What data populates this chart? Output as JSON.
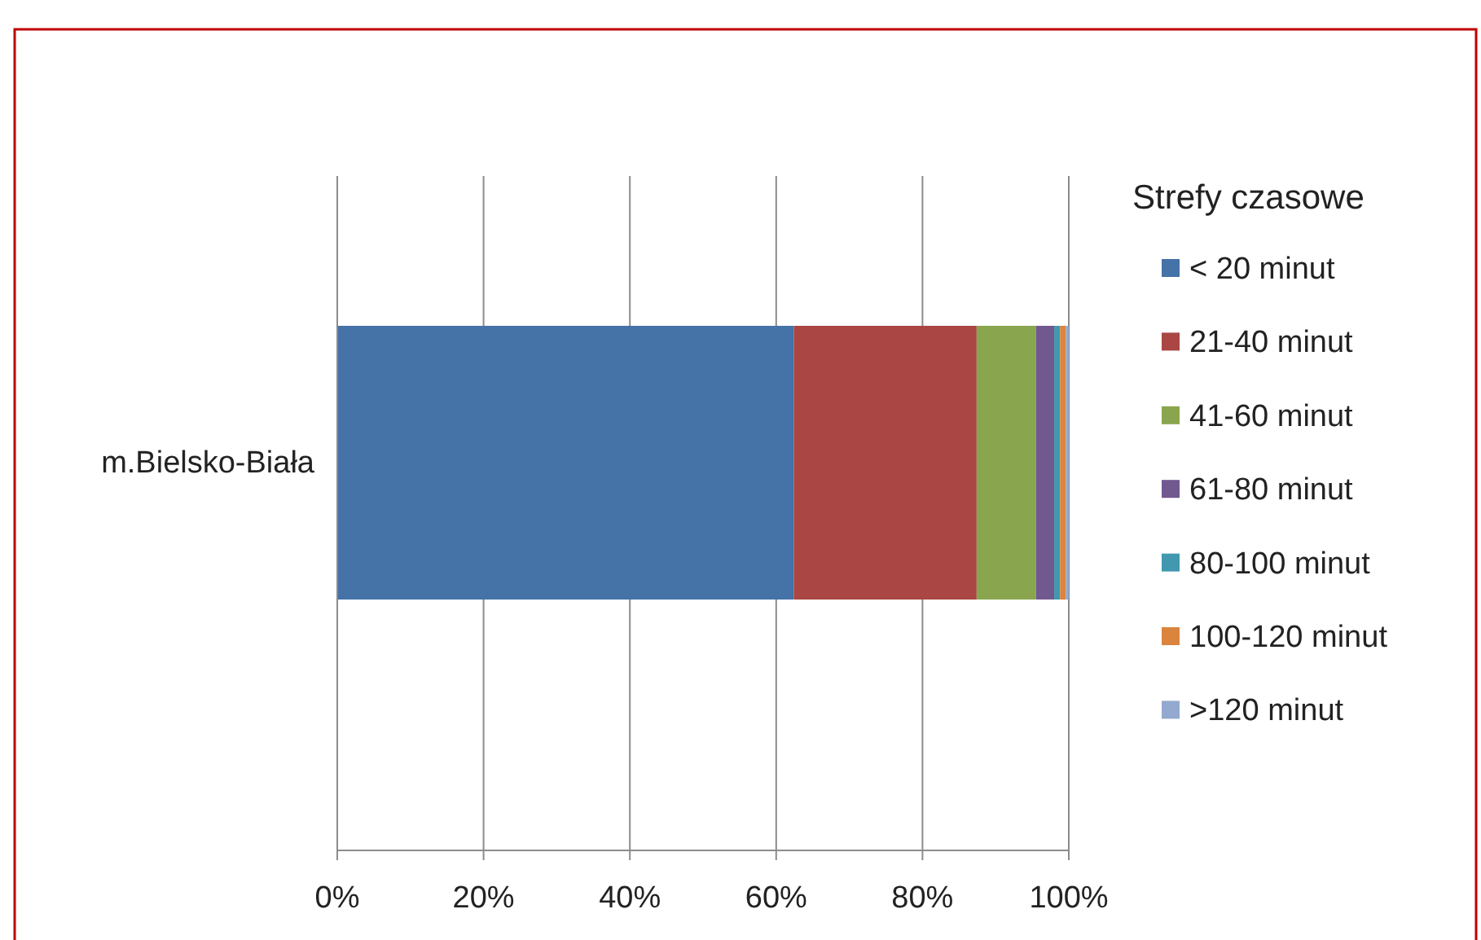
{
  "chart_data": {
    "type": "bar",
    "orientation": "horizontal",
    "stacked": true,
    "categories": [
      "m.Bielsko-Biała"
    ],
    "series": [
      {
        "name": "< 20 minut",
        "color": "#4572a7",
        "values": [
          62.4
        ]
      },
      {
        "name": "21-40 minut",
        "color": "#aa4643",
        "values": [
          25.0
        ]
      },
      {
        "name": "41-60 minut",
        "color": "#89a54e",
        "values": [
          8.1
        ]
      },
      {
        "name": "61-80 minut",
        "color": "#71588f",
        "values": [
          2.5
        ]
      },
      {
        "name": "80-100 minut",
        "color": "#4198af",
        "values": [
          0.8
        ]
      },
      {
        "name": "100-120 minut",
        "color": "#db843d",
        "values": [
          0.8
        ]
      },
      {
        "name": ">120 minut",
        "color": "#93a9cf",
        "values": [
          0.4
        ]
      }
    ],
    "xlim": [
      0,
      100
    ],
    "xticks": [
      {
        "value": 0,
        "label": "0%"
      },
      {
        "value": 20,
        "label": "20%"
      },
      {
        "value": 40,
        "label": "40%"
      },
      {
        "value": 60,
        "label": "60%"
      },
      {
        "value": 80,
        "label": "80%"
      },
      {
        "value": 100,
        "label": "100%"
      }
    ],
    "legend_title": "Strefy czasowe",
    "legend": "right",
    "grid": "x"
  }
}
